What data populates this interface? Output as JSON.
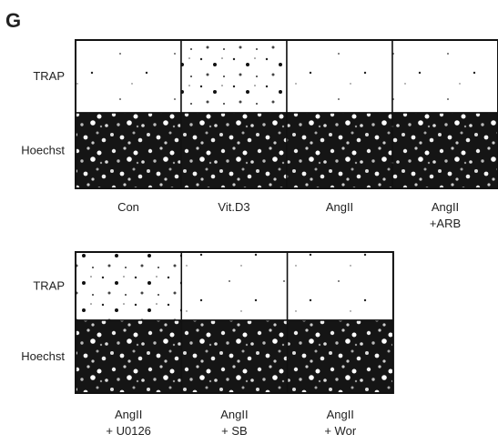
{
  "panel_label": "G",
  "panels": [
    {
      "row_labels": [
        "TRAP",
        "Hoechst"
      ],
      "columns": [
        [
          "Con"
        ],
        [
          "Vit.D3"
        ],
        [
          "AngII"
        ],
        [
          "AngII",
          "+ARB"
        ]
      ]
    },
    {
      "row_labels": [
        "TRAP",
        "Hoechst"
      ],
      "columns": [
        [
          "AngII",
          "+ U0126"
        ],
        [
          "AngII",
          "+ SB"
        ],
        [
          "AngII",
          "+ Wor"
        ]
      ]
    }
  ]
}
